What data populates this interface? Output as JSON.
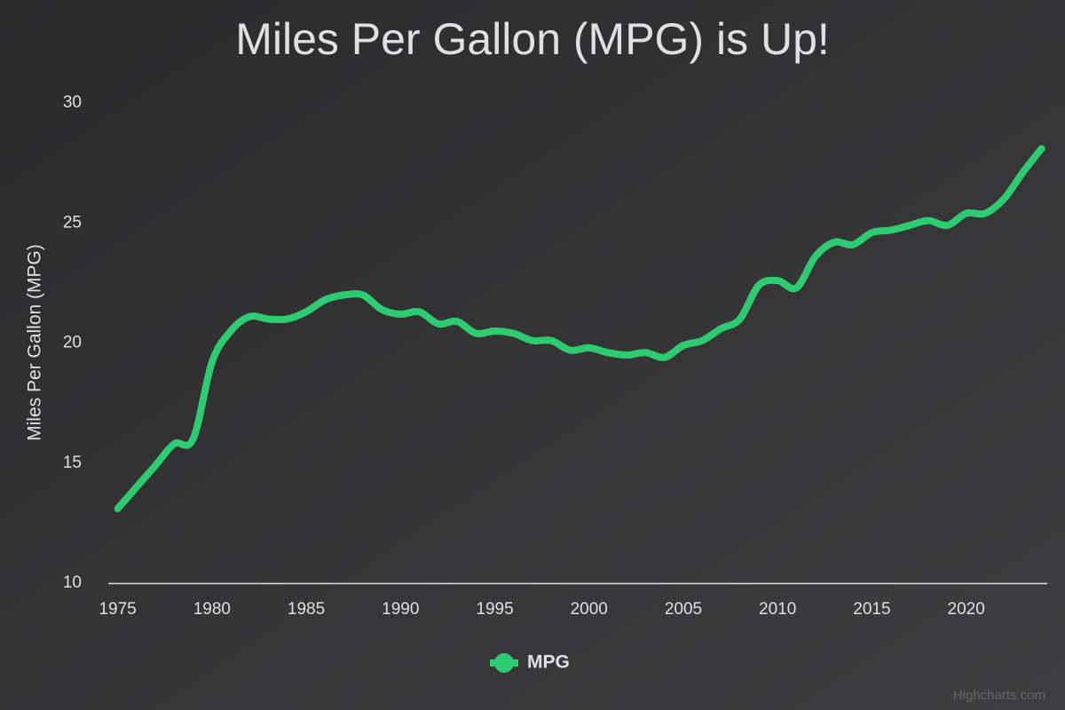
{
  "chart_data": {
    "type": "line",
    "title": "Miles Per Gallon (MPG) is Up!",
    "y_label": "Miles Per Gallon (MPG)",
    "credits": "Highcharts.com",
    "x": [
      1975,
      1976,
      1977,
      1978,
      1979,
      1980,
      1981,
      1982,
      1983,
      1984,
      1985,
      1986,
      1987,
      1988,
      1989,
      1990,
      1991,
      1992,
      1993,
      1994,
      1995,
      1996,
      1997,
      1998,
      1999,
      2000,
      2001,
      2002,
      2003,
      2004,
      2005,
      2006,
      2007,
      2008,
      2009,
      2010,
      2011,
      2012,
      2013,
      2014,
      2015,
      2016,
      2017,
      2018,
      2019,
      2020,
      2021,
      2022,
      2023,
      2024
    ],
    "series": [
      {
        "name": "MPG",
        "color": "#2ecc71",
        "values": [
          13.1,
          14.0,
          14.9,
          15.8,
          16.0,
          19.2,
          20.5,
          21.1,
          21.0,
          21.0,
          21.3,
          21.8,
          22.0,
          22.0,
          21.4,
          21.2,
          21.3,
          20.8,
          20.9,
          20.4,
          20.5,
          20.4,
          20.1,
          20.1,
          19.7,
          19.8,
          19.6,
          19.5,
          19.6,
          19.4,
          19.9,
          20.1,
          20.6,
          21.0,
          22.4,
          22.6,
          22.3,
          23.6,
          24.2,
          24.1,
          24.6,
          24.7,
          24.9,
          25.1,
          24.9,
          25.4,
          25.4,
          26.0,
          27.1,
          28.1
        ]
      }
    ],
    "xlim": [
      1974.5,
      2024.3
    ],
    "xticks": [
      1975,
      1980,
      1985,
      1990,
      1995,
      2000,
      2005,
      2010,
      2015,
      2020
    ],
    "ylim": [
      10,
      30
    ],
    "yticks": [
      10,
      15,
      20,
      25,
      30
    ],
    "grid": false,
    "legend": "bottom"
  }
}
